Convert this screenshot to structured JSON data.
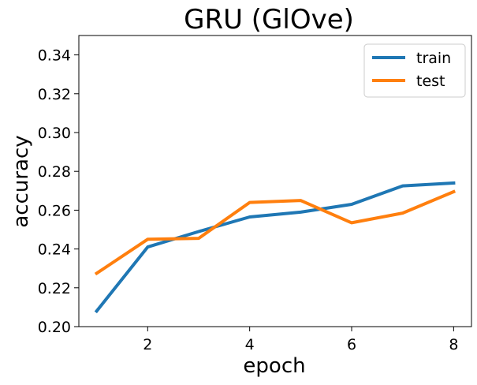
{
  "chart_data": {
    "type": "line",
    "title": "GRU (GlOve)",
    "xlabel": "epoch",
    "ylabel": "accuracy",
    "x": [
      1,
      2,
      3,
      4,
      5,
      6,
      7,
      8
    ],
    "xlim": [
      0.65,
      8.35
    ],
    "ylim": [
      0.2,
      0.35
    ],
    "xticks": [
      2,
      4,
      6,
      8
    ],
    "xtick_labels": [
      "2",
      "4",
      "6",
      "8"
    ],
    "yticks": [
      0.2,
      0.22,
      0.24,
      0.26,
      0.28,
      0.3,
      0.32,
      0.34
    ],
    "ytick_labels": [
      "0.20",
      "0.22",
      "0.24",
      "0.26",
      "0.28",
      "0.30",
      "0.32",
      "0.34"
    ],
    "grid": false,
    "legend_position": "top-right",
    "series": [
      {
        "name": "train",
        "color": "#1f77b4",
        "values": [
          0.208,
          0.241,
          0.249,
          0.2565,
          0.259,
          0.263,
          0.2725,
          0.274
        ]
      },
      {
        "name": "test",
        "color": "#ff7f0e",
        "values": [
          0.2275,
          0.245,
          0.2455,
          0.264,
          0.265,
          0.2535,
          0.2585,
          0.2695
        ]
      }
    ]
  }
}
